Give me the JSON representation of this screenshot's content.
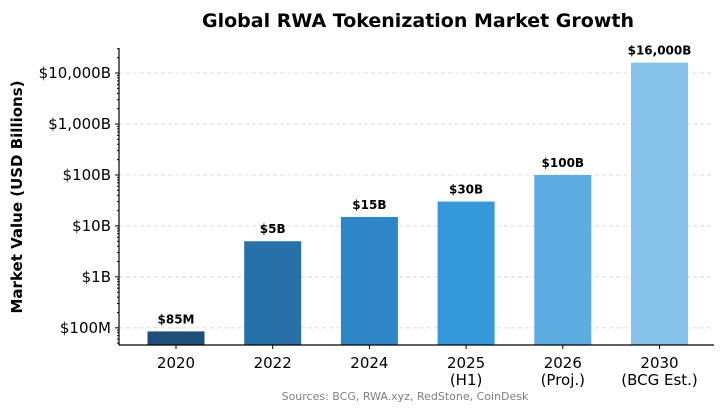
{
  "chart_data": {
    "type": "bar",
    "title": "Global RWA Tokenization Market Growth",
    "xlabel": "",
    "ylabel": "Market Value (USD Billions)",
    "yscale": "log",
    "ylim": [
      0.046,
      31000
    ],
    "grid": "y dashed",
    "categories": [
      [
        "2020"
      ],
      [
        "2022"
      ],
      [
        "2024"
      ],
      [
        "2025",
        "(H1)"
      ],
      [
        "2026",
        "(Proj.)"
      ],
      [
        "2030",
        "(BCG Est.)"
      ]
    ],
    "values": [
      0.085,
      5,
      15,
      30,
      100,
      16000
    ],
    "data_labels": [
      "$85M",
      "$5B",
      "$15B",
      "$30B",
      "$100B",
      "$16,000B"
    ],
    "colors": [
      "#1f4e79",
      "#2870a8",
      "#2e86c8",
      "#3498db",
      "#5dade2",
      "#85c1e9"
    ],
    "yticks": [
      {
        "value": 0.1,
        "label": "$100M"
      },
      {
        "value": 1,
        "label": "$1B"
      },
      {
        "value": 10,
        "label": "$10B"
      },
      {
        "value": 100,
        "label": "$100B"
      },
      {
        "value": 1000,
        "label": "$1,000B"
      },
      {
        "value": 10000,
        "label": "$10,000B"
      }
    ],
    "source": "Sources: BCG, RWA.xyz, RedStone, CoinDesk"
  }
}
